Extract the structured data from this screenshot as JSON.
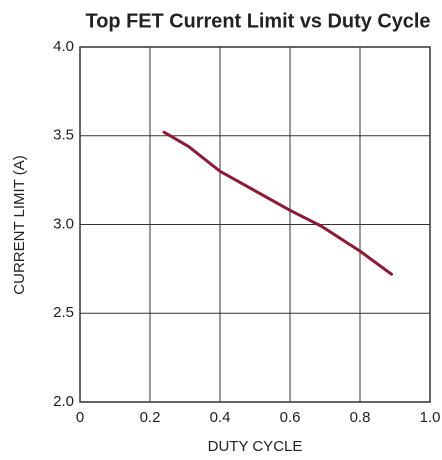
{
  "chart_data": {
    "type": "line",
    "title": "Top FET Current Limit vs Duty Cycle",
    "xlabel": "DUTY CYCLE",
    "ylabel": "CURRENT LIMIT (A)",
    "x": [
      0.24,
      0.31,
      0.4,
      0.5,
      0.6,
      0.69,
      0.8,
      0.89
    ],
    "values": [
      3.52,
      3.44,
      3.3,
      3.19,
      3.08,
      2.99,
      2.85,
      2.72
    ],
    "color": "#8b1a35",
    "xlim": [
      0,
      1
    ],
    "ylim": [
      2,
      4
    ],
    "xticks": [
      0,
      0.2,
      0.4,
      0.6,
      0.8,
      {
        "value": 1,
        "label": "1.0"
      }
    ],
    "yticks": [
      {
        "value": 2,
        "label": "2.0"
      },
      2.5,
      {
        "value": 3,
        "label": "3.0"
      },
      3.5,
      {
        "value": 4,
        "label": "4.0"
      }
    ],
    "grid": true
  }
}
